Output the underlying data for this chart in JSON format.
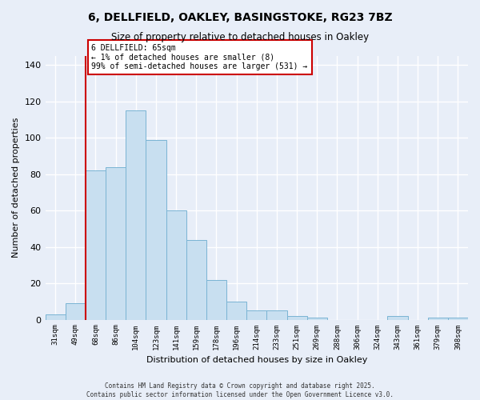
{
  "title": "6, DELLFIELD, OAKLEY, BASINGSTOKE, RG23 7BZ",
  "subtitle": "Size of property relative to detached houses in Oakley",
  "xlabel": "Distribution of detached houses by size in Oakley",
  "ylabel": "Number of detached properties",
  "bin_labels": [
    "31sqm",
    "49sqm",
    "68sqm",
    "86sqm",
    "104sqm",
    "123sqm",
    "141sqm",
    "159sqm",
    "178sqm",
    "196sqm",
    "214sqm",
    "233sqm",
    "251sqm",
    "269sqm",
    "288sqm",
    "306sqm",
    "324sqm",
    "343sqm",
    "361sqm",
    "379sqm",
    "398sqm"
  ],
  "bar_heights": [
    3,
    9,
    82,
    84,
    115,
    99,
    60,
    44,
    22,
    10,
    5,
    5,
    2,
    1,
    0,
    0,
    0,
    2,
    0,
    1,
    1
  ],
  "bar_color": "#c8dff0",
  "bar_edge_color": "#7ab4d4",
  "vline_index": 2,
  "annotation_title": "6 DELLFIELD: 65sqm",
  "annotation_line1": "← 1% of detached houses are smaller (8)",
  "annotation_line2": "99% of semi-detached houses are larger (531) →",
  "annotation_box_color": "#ffffff",
  "annotation_box_edge_color": "#cc0000",
  "vline_color": "#cc0000",
  "ylim": [
    0,
    145
  ],
  "yticks": [
    0,
    20,
    40,
    60,
    80,
    100,
    120,
    140
  ],
  "footnote1": "Contains HM Land Registry data © Crown copyright and database right 2025.",
  "footnote2": "Contains public sector information licensed under the Open Government Licence v3.0.",
  "background_color": "#e8eef8",
  "grid_color": "#ffffff"
}
